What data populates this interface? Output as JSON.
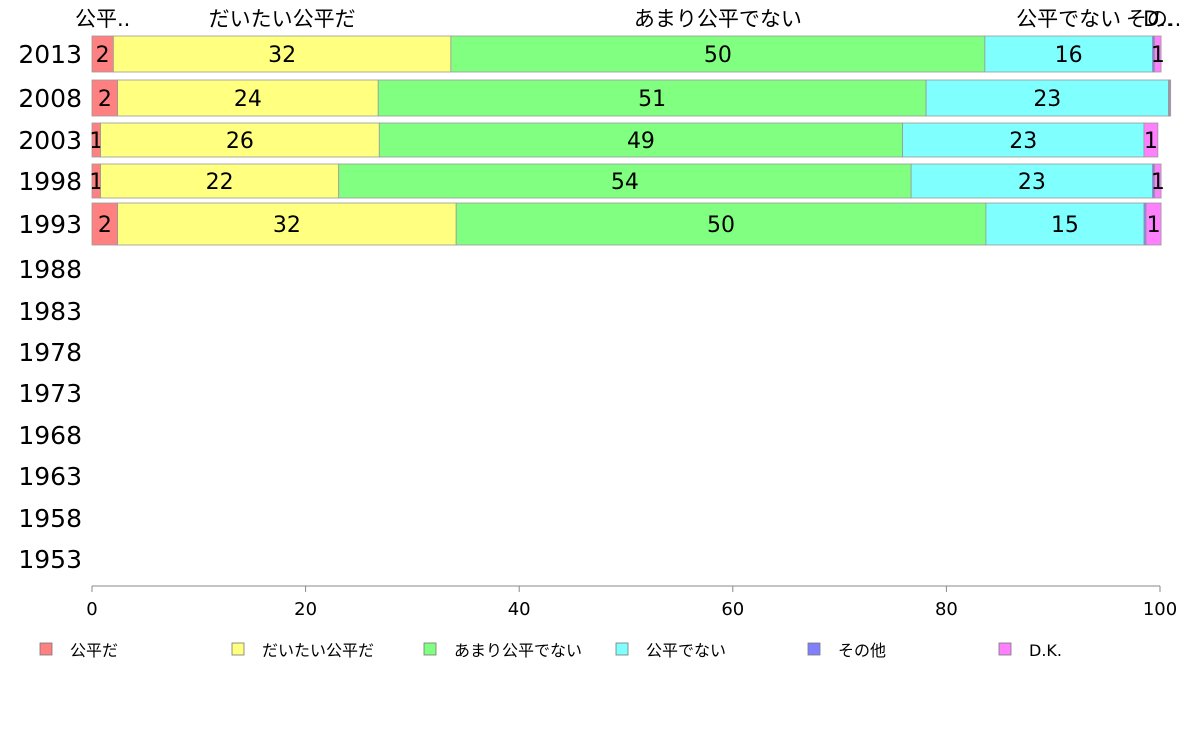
{
  "chart_data": {
    "type": "bar",
    "orientation": "horizontal",
    "stacked": true,
    "title": "",
    "xlabel": "",
    "ylabel": "",
    "xlim": [
      0,
      100
    ],
    "x_ticks": [
      "0",
      "20",
      "40",
      "60",
      "80",
      "100"
    ],
    "categories": [
      "2013",
      "2008",
      "2003",
      "1998",
      "1993",
      "1988",
      "1983",
      "1978",
      "1973",
      "1968",
      "1963",
      "1958",
      "1953"
    ],
    "top_labels": [
      "公平..",
      "だいたい公平だ",
      "あまり公平でない",
      "公平でない",
      "その..",
      "D.."
    ],
    "series": [
      {
        "name": "公平だ",
        "color": "#ff8080",
        "values": [
          2,
          2.4,
          0.8,
          0.8,
          2.4,
          null,
          null,
          null,
          null,
          null,
          null,
          null,
          null
        ],
        "labels": [
          "2",
          "2",
          "1",
          "1",
          "2",
          "",
          "",
          "",
          "",
          "",
          "",
          "",
          ""
        ]
      },
      {
        "name": "だいたい公平だ",
        "color": "#ffff80",
        "values": [
          31.6,
          24.4,
          26.1,
          22.3,
          31.7,
          null,
          null,
          null,
          null,
          null,
          null,
          null,
          null
        ],
        "labels": [
          "32",
          "24",
          "26",
          "22",
          "32",
          "",
          "",
          "",
          "",
          "",
          "",
          "",
          ""
        ]
      },
      {
        "name": "あまり公平でない",
        "color": "#80ff80",
        "values": [
          50,
          51.3,
          49,
          53.6,
          49.6,
          null,
          null,
          null,
          null,
          null,
          null,
          null,
          null
        ],
        "labels": [
          "50",
          "51",
          "49",
          "54",
          "50",
          "",
          "",
          "",
          "",
          "",
          "",
          "",
          ""
        ]
      },
      {
        "name": "公平でない",
        "color": "#80ffff",
        "values": [
          15.7,
          22.7,
          22.6,
          22.6,
          14.8,
          null,
          null,
          null,
          null,
          null,
          null,
          null,
          null
        ],
        "labels": [
          "16",
          "23",
          "23",
          "23",
          "15",
          "",
          "",
          "",
          "",
          "",
          "",
          "",
          ""
        ]
      },
      {
        "name": "その他",
        "color": "#8080ff",
        "values": [
          0.2,
          0.1,
          0,
          0.2,
          0.2,
          null,
          null,
          null,
          null,
          null,
          null,
          null,
          null
        ],
        "labels": [
          "",
          "",
          "",
          "",
          "",
          "",
          "",
          "",
          "",
          "",
          "",
          "",
          ""
        ]
      },
      {
        "name": "D.K.",
        "color": "#ff80ff",
        "values": [
          0.6,
          0.1,
          1.3,
          0.6,
          1.4,
          null,
          null,
          null,
          null,
          null,
          null,
          null,
          null
        ],
        "labels": [
          "1",
          "",
          "1",
          "1",
          "1",
          "",
          "",
          "",
          "",
          "",
          "",
          "",
          ""
        ]
      }
    ],
    "legend_position": "bottom",
    "grid": false
  }
}
